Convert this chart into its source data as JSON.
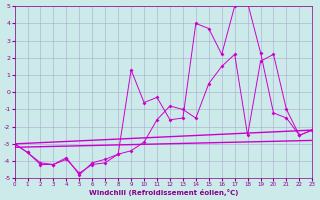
{
  "xlabel": "Windchill (Refroidissement éolien,°C)",
  "xlim": [
    0,
    23
  ],
  "ylim": [
    -5,
    5
  ],
  "xticks": [
    0,
    1,
    2,
    3,
    4,
    5,
    6,
    7,
    8,
    9,
    10,
    11,
    12,
    13,
    14,
    15,
    16,
    17,
    18,
    19,
    20,
    21,
    22,
    23
  ],
  "yticks": [
    -5,
    -4,
    -3,
    -2,
    -1,
    0,
    1,
    2,
    3,
    4,
    5
  ],
  "bg_color": "#cceaea",
  "grid_color": "#aaaacc",
  "line_color": "#cc00cc",
  "series1_x": [
    0,
    1,
    2,
    3,
    4,
    5,
    6,
    7,
    8,
    9,
    10,
    11,
    12,
    13,
    14,
    15,
    16,
    17,
    18,
    19,
    20,
    21,
    22,
    23
  ],
  "series1_y": [
    -3.0,
    -3.5,
    -4.2,
    -4.2,
    -3.8,
    -4.8,
    -4.1,
    -3.9,
    -3.6,
    1.3,
    -0.6,
    -0.3,
    -1.6,
    -1.5,
    4.0,
    3.7,
    2.2,
    5.0,
    5.2,
    2.3,
    -1.2,
    -1.5,
    -2.5,
    -2.2
  ],
  "series2_x": [
    0,
    1,
    2,
    3,
    4,
    5,
    6,
    7,
    8,
    9,
    10,
    11,
    12,
    13,
    14,
    15,
    16,
    17,
    18,
    19,
    20,
    21,
    22,
    23
  ],
  "series2_y": [
    -3.0,
    -3.5,
    -4.1,
    -4.2,
    -3.9,
    -4.7,
    -4.2,
    -4.1,
    -3.6,
    -3.4,
    -2.9,
    -1.6,
    -0.8,
    -1.0,
    -1.5,
    0.5,
    1.5,
    2.2,
    -2.5,
    1.8,
    2.2,
    -1.0,
    -2.5,
    -2.2
  ],
  "trend1_x": [
    0,
    23
  ],
  "trend1_y": [
    -3.0,
    -2.2
  ],
  "trend2_x": [
    0,
    23
  ],
  "trend2_y": [
    -3.2,
    -2.8
  ]
}
